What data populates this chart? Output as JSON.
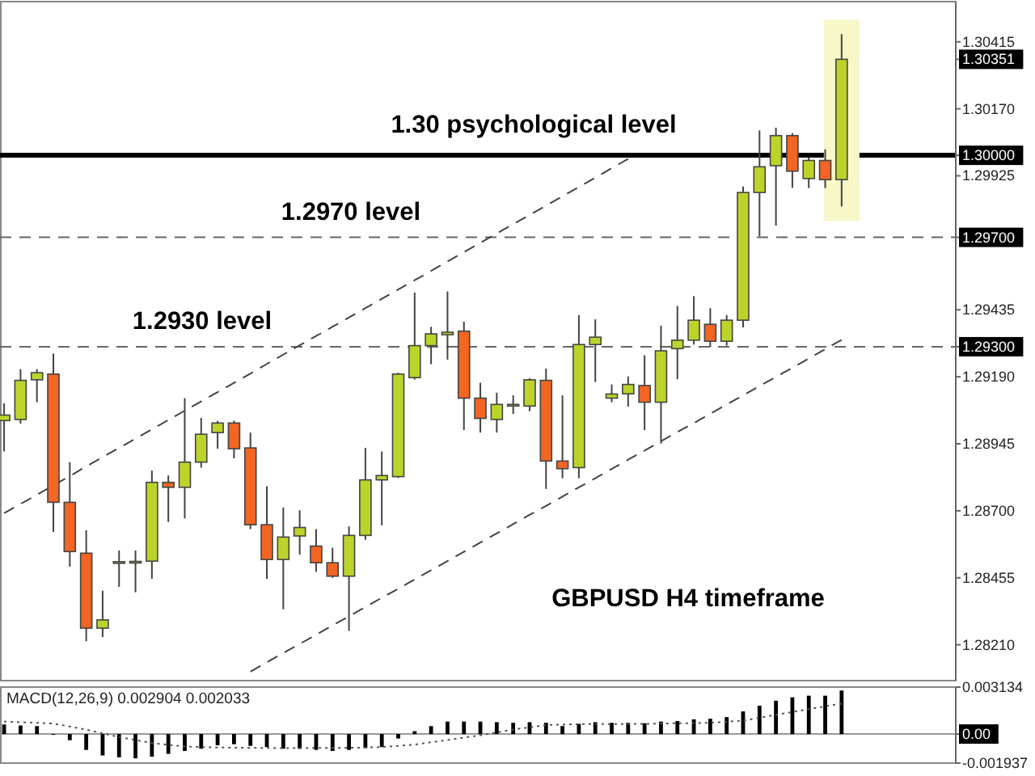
{
  "chart_data": [
    {
      "type": "candlestick",
      "categories": [
        null,
        null,
        null,
        null,
        null,
        null,
        null,
        null,
        null,
        null,
        null,
        null,
        null,
        null,
        null,
        null,
        null,
        null,
        null,
        null,
        null,
        null,
        null,
        null,
        null,
        null,
        null,
        null,
        null,
        null,
        null,
        null,
        null,
        null,
        null,
        null,
        null,
        null,
        null,
        null,
        null,
        null,
        null,
        null,
        null,
        null,
        null,
        null,
        null,
        null,
        null,
        null
      ],
      "ohlc": [
        [
          1.2903,
          1.29093,
          1.28917,
          1.2905
        ],
        [
          1.29034,
          1.29218,
          1.29019,
          1.29177
        ],
        [
          1.29179,
          1.29218,
          1.29097,
          1.29205
        ],
        [
          1.292,
          1.29275,
          1.28623,
          1.28731
        ],
        [
          1.28731,
          1.28878,
          1.28496,
          1.28551
        ],
        [
          1.28545,
          1.28629,
          1.28223,
          1.28271
        ],
        [
          1.28271,
          1.28408,
          1.28238,
          1.28301
        ],
        [
          1.28512,
          1.28555,
          1.28422,
          1.28514
        ],
        [
          1.28513,
          1.28555,
          1.28402,
          1.28515
        ],
        [
          1.28516,
          1.28847,
          1.28451,
          1.28804
        ],
        [
          1.28804,
          1.28829,
          1.28659,
          1.28786
        ],
        [
          1.28786,
          1.29112,
          1.28672,
          1.28878
        ],
        [
          1.28878,
          1.2904,
          1.28858,
          1.2898
        ],
        [
          1.28986,
          1.29029,
          1.28927,
          1.29021
        ],
        [
          1.29021,
          1.2903,
          1.28892,
          1.28927
        ],
        [
          1.2893,
          1.28986,
          1.28633,
          1.28649
        ],
        [
          1.28649,
          1.2879,
          1.28451,
          1.28522
        ],
        [
          1.28522,
          1.28712,
          1.2834,
          1.28604
        ],
        [
          1.28608,
          1.28702,
          1.2854,
          1.28639
        ],
        [
          1.28571,
          1.28633,
          1.28477,
          1.2851
        ],
        [
          1.2851,
          1.28565,
          1.28455,
          1.28461
        ],
        [
          1.28461,
          1.28643,
          1.28261,
          1.2861
        ],
        [
          1.2861,
          1.2893,
          1.28594,
          1.28813
        ],
        [
          1.28813,
          1.28917,
          1.28647,
          1.28829
        ],
        [
          1.28825,
          1.29205,
          1.2882,
          1.292
        ],
        [
          1.29187,
          1.29498,
          1.2918,
          1.29304
        ],
        [
          1.29304,
          1.29373,
          1.29236,
          1.29347
        ],
        [
          1.29344,
          1.29502,
          1.29253,
          1.29353
        ],
        [
          1.29357,
          1.29392,
          1.28995,
          1.29112
        ],
        [
          1.29112,
          1.29168,
          1.28986,
          1.29038
        ],
        [
          1.29034,
          1.29132,
          1.28986,
          1.29089
        ],
        [
          1.29088,
          1.29122,
          1.29054,
          1.29089
        ],
        [
          1.29083,
          1.29185,
          1.29064,
          1.29179
        ],
        [
          1.29177,
          1.2922,
          1.2878,
          1.28882
        ],
        [
          1.28882,
          1.29122,
          1.28819,
          1.28854
        ],
        [
          1.28858,
          1.29416,
          1.28819,
          1.29308
        ],
        [
          1.29308,
          1.294,
          1.29171,
          1.29335
        ],
        [
          1.29112,
          1.29162,
          1.29097,
          1.29127
        ],
        [
          1.29128,
          1.29191,
          1.29081,
          1.29162
        ],
        [
          1.29158,
          1.29269,
          1.28995,
          1.29097
        ],
        [
          1.29097,
          1.29377,
          1.28946,
          1.29285
        ],
        [
          1.29293,
          1.29449,
          1.29181,
          1.29324
        ],
        [
          1.29324,
          1.29485,
          1.29308,
          1.29397
        ],
        [
          1.29382,
          1.29441,
          1.29299,
          1.2932
        ],
        [
          1.2932,
          1.29416,
          1.29304,
          1.29397
        ],
        [
          1.29397,
          1.29886,
          1.29371,
          1.29864
        ],
        [
          1.29864,
          1.30091,
          1.29704,
          1.29958
        ],
        [
          1.29962,
          1.30101,
          1.29743,
          1.30072
        ],
        [
          1.30072,
          1.30081,
          1.29881,
          1.29942
        ],
        [
          1.29915,
          1.29993,
          1.2988,
          1.29981
        ],
        [
          1.29981,
          1.30022,
          1.2988,
          1.29911
        ],
        [
          1.29911,
          1.30443,
          1.29813,
          1.30351
        ]
      ],
      "colors": [
        "#bcd42a",
        "#bcd42a",
        "#bcd42a",
        "#f26522",
        "#f26522",
        "#f26522",
        "#bcd42a",
        "#bcd42a",
        "#bcd42a",
        "#bcd42a",
        "#f26522",
        "#bcd42a",
        "#bcd42a",
        "#bcd42a",
        "#f26522",
        "#f26522",
        "#f26522",
        "#bcd42a",
        "#bcd42a",
        "#f26522",
        "#f26522",
        "#bcd42a",
        "#bcd42a",
        "#bcd42a",
        "#bcd42a",
        "#bcd42a",
        "#bcd42a",
        "#bcd42a",
        "#f26522",
        "#f26522",
        "#bcd42a",
        "#bcd42a",
        "#bcd42a",
        "#f26522",
        "#f26522",
        "#bcd42a",
        "#bcd42a",
        "#bcd42a",
        "#bcd42a",
        "#f26522",
        "#bcd42a",
        "#bcd42a",
        "#bcd42a",
        "#f26522",
        "#bcd42a",
        "#bcd42a",
        "#bcd42a",
        "#bcd42a",
        "#f26522",
        "#bcd42a",
        "#f26522",
        "#bcd42a"
      ],
      "ylim": [
        1.28079,
        1.30562
      ],
      "yticks": [
        1.30415,
        1.30351,
        {
          "value": 1.3017,
          "label": "1.30170"
        },
        {
          "value": 1.3,
          "label": "1.30000"
        },
        1.29925,
        {
          "value": 1.297,
          "label": "1.29700"
        },
        1.29435,
        {
          "value": 1.293,
          "label": "1.29300"
        },
        {
          "value": 1.2919,
          "label": "1.29190"
        },
        1.28945,
        {
          "value": 1.287,
          "label": "1.28700"
        },
        1.28455,
        {
          "value": 1.2821,
          "label": "1.28210"
        }
      ],
      "tick_labels": "y",
      "ref_lines": [
        {
          "axis": "y",
          "value": 1.3,
          "label": "1.30 psychological level",
          "color": "#000000",
          "line_style": "solid"
        },
        {
          "axis": "y",
          "value": 1.297,
          "label": "1.2970 level",
          "color": "#666666",
          "line_style": "dashed"
        },
        {
          "axis": "y",
          "value": 1.293,
          "label": "1.2930 level",
          "color": "#666666",
          "line_style": "dashed"
        }
      ],
      "annotations": [
        "GBPUSD H4 timeframe"
      ],
      "series": [
        {
          "type": "line",
          "color": "#444444",
          "line_style": "dashed",
          "values": [
            1.28691,
            1.28725,
            1.28759,
            1.28793,
            1.28827,
            1.28862,
            1.28896,
            1.2893,
            1.28964,
            1.28998,
            1.29032,
            1.29066,
            1.291,
            1.29134,
            1.29168,
            1.29202,
            1.29237,
            1.29271,
            1.29305,
            1.29339,
            1.29373,
            1.29407,
            1.29441,
            1.29475,
            1.29509,
            1.29543,
            1.29577,
            1.29612,
            1.29646,
            1.2968,
            1.29714,
            1.29748,
            1.29782,
            1.29816,
            1.2985,
            1.29884,
            1.29918,
            1.29953,
            1.29987,
            null,
            null,
            null,
            null,
            null,
            null,
            null,
            null,
            null,
            null,
            null,
            null,
            null
          ]
        },
        {
          "type": "line",
          "color": "#444444",
          "line_style": "dashed",
          "values": [
            null,
            null,
            null,
            null,
            null,
            null,
            null,
            null,
            null,
            null,
            null,
            null,
            null,
            null,
            null,
            1.28112,
            1.28146,
            1.2818,
            1.28213,
            1.28247,
            1.28281,
            1.28314,
            1.28348,
            1.28382,
            1.28415,
            1.28449,
            1.28483,
            1.28516,
            1.2855,
            1.28584,
            1.28617,
            1.28651,
            1.28685,
            1.28718,
            1.28752,
            1.28786,
            1.28819,
            1.28853,
            1.28887,
            1.2892,
            1.28954,
            1.28988,
            1.29021,
            1.29055,
            1.29089,
            1.29122,
            1.29156,
            1.2919,
            1.29223,
            1.29257,
            1.29291,
            1.29325
          ]
        }
      ]
    },
    {
      "type": "bar",
      "title": "MACD(12,26,9) 0.002904 0.002033",
      "categories": [
        null,
        null,
        null,
        null,
        null,
        null,
        null,
        null,
        null,
        null,
        null,
        null,
        null,
        null,
        null,
        null,
        null,
        null,
        null,
        null,
        null,
        null,
        null,
        null,
        null,
        null,
        null,
        null,
        null,
        null,
        null,
        null,
        null,
        null,
        null,
        null,
        null,
        null,
        null,
        null,
        null,
        null,
        null,
        null,
        null,
        null,
        null,
        null,
        null,
        null,
        null,
        null
      ],
      "ylim": [
        -0.001937,
        0.003134
      ],
      "yticks": [
        0.003134,
        {
          "value": 0,
          "label": "0.00"
        },
        -0.001937
      ],
      "tick_labels": "y",
      "ref_lines": [
        {
          "axis": "y",
          "value": 0,
          "color": "#999999",
          "line_style": "solid"
        }
      ],
      "series": [
        {
          "type": "bar",
          "color": "#000000",
          "values": [
            0.00064,
            0.00057,
            0.00053,
            0,
            -0.00041,
            -0.00106,
            -0.00143,
            -0.00155,
            -0.00162,
            -0.00151,
            -0.00132,
            -0.00113,
            -0.00098,
            -0.00075,
            -0.00068,
            -0.00079,
            -0.00087,
            -0.00098,
            -0.00098,
            -0.00106,
            -0.00113,
            -0.00106,
            -0.00094,
            -0.00087,
            -0.0003,
            0.00019,
            0.00053,
            0.00083,
            0.00083,
            0.00083,
            0.00079,
            0.00075,
            0.00079,
            0.00075,
            0.00053,
            0.00068,
            0.00079,
            0.00075,
            0.00075,
            0.00072,
            0.00083,
            0.00087,
            0.00098,
            0.00102,
            0.00113,
            0.00151,
            0.00189,
            0.00222,
            0.00245,
            0.00256,
            0.00256,
            0.002904
          ]
        },
        {
          "type": "line",
          "color": "#555555",
          "line_style": "dotted",
          "values": [
            0.00083,
            0.00079,
            0.00075,
            0.0007,
            0.0005,
            0.0003,
            5e-05,
            -0.0002,
            -0.0004,
            -0.0006,
            -0.00072,
            -0.00083,
            -0.00087,
            -0.0009,
            -0.00091,
            -0.00092,
            -0.00093,
            -0.00094,
            -0.00094,
            -0.00093,
            -0.00093,
            -0.00092,
            -0.0009,
            -0.00087,
            -0.00079,
            -0.0007,
            -0.00055,
            -0.0004,
            -0.00024,
            -8e-05,
            0.00011,
            0.0003,
            0.00045,
            0.0006,
            0.00063,
            0.00066,
            0.00066,
            0.00067,
            0.00067,
            0.00068,
            0.0007,
            0.00072,
            0.00073,
            0.00075,
            0.00082,
            0.0009,
            0.00109,
            0.00128,
            0.00147,
            0.00166,
            0.00185,
            0.002033
          ]
        }
      ]
    }
  ]
}
